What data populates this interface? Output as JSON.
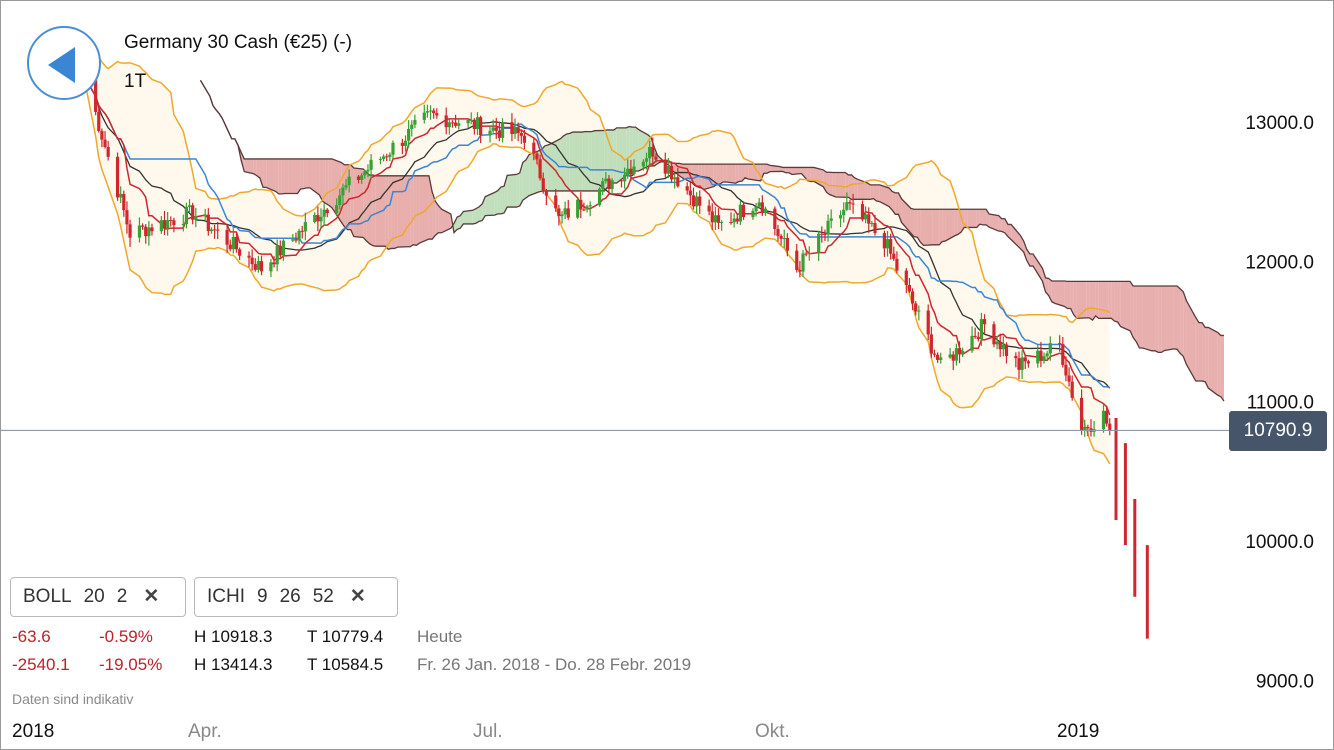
{
  "header": {
    "title": "Germany 30 Cash (€25) (-)",
    "period": "1T"
  },
  "price_tag": "10790.9",
  "indicators": [
    {
      "name": "BOLL",
      "p1": "20",
      "p2": "2",
      "p3": ""
    },
    {
      "name": "ICHI",
      "p1": "9",
      "p2": "26",
      "p3": "52"
    }
  ],
  "stats": {
    "today": {
      "change": "-63.6",
      "pct": "-0.59%",
      "high": "H 10918.3",
      "low": "T 10779.4",
      "label": "Heute"
    },
    "range": {
      "change": "-2540.1",
      "pct": "-19.05%",
      "high": "H 13414.3",
      "low": "T 10584.5",
      "label": "Fr. 26 Jan. 2018 - Do. 28 Febr. 2019"
    }
  },
  "disclaimer": "Daten sind indikativ",
  "colors": {
    "up": "#3aa035",
    "down": "#d0262f",
    "tenkan": "#d0262f",
    "kijun": "#3b86d4",
    "chikou": "#333333",
    "bollinger": "#f0a82a",
    "cloud_bull": "#b6d9b0",
    "cloud_bear": "#e3a1a0",
    "current_line": "#8e9aa6"
  },
  "chart_data": {
    "type": "candlestick",
    "title": "Germany 30 Cash (€25) (-)",
    "interval": "1T",
    "y_ticks": [
      "13000.0",
      "12000.0",
      "11000.0",
      "10000.0",
      "9000.0"
    ],
    "x_labels": [
      {
        "text": "2018",
        "date": "2018-01-01"
      },
      {
        "text": "Apr.",
        "date": "2018-04-01"
      },
      {
        "text": "Jul.",
        "date": "2018-07-01"
      },
      {
        "text": "Okt.",
        "date": "2018-10-01"
      },
      {
        "text": "2019",
        "date": "2019-01-01"
      }
    ],
    "last_price": 10790.9,
    "range_high": 13414.3,
    "range_low": 10584.5,
    "ohlc_anchors": [
      {
        "date": "2018-01-26",
        "close": 13300
      },
      {
        "date": "2018-02-09",
        "close": 12200
      },
      {
        "date": "2018-03-01",
        "close": 12350
      },
      {
        "date": "2018-03-23",
        "close": 11950
      },
      {
        "date": "2018-04-20",
        "close": 12550
      },
      {
        "date": "2018-05-16",
        "close": 13050
      },
      {
        "date": "2018-06-15",
        "close": 12900
      },
      {
        "date": "2018-06-26",
        "close": 12300
      },
      {
        "date": "2018-07-05",
        "close": 12450
      },
      {
        "date": "2018-07-26",
        "close": 12800
      },
      {
        "date": "2018-08-16",
        "close": 12250
      },
      {
        "date": "2018-08-29",
        "close": 12450
      },
      {
        "date": "2018-09-10",
        "close": 11950
      },
      {
        "date": "2018-09-26",
        "close": 12400
      },
      {
        "date": "2018-10-08",
        "close": 12150
      },
      {
        "date": "2018-10-26",
        "close": 11250
      },
      {
        "date": "2018-11-09",
        "close": 11550
      },
      {
        "date": "2018-11-20",
        "close": 11250
      },
      {
        "date": "2018-12-03",
        "close": 11400
      },
      {
        "date": "2018-12-10",
        "close": 10800
      },
      {
        "date": "2018-12-17",
        "close": 10900
      },
      {
        "date": "2018-12-19",
        "close": 10790.9
      }
    ],
    "projected_drop": [
      {
        "date": "2018-12-21",
        "high": 10880,
        "low": 10150
      },
      {
        "date": "2018-12-24",
        "high": 10700,
        "low": 9970
      },
      {
        "date": "2018-12-27",
        "high": 10300,
        "low": 9600
      },
      {
        "date": "2018-12-31",
        "high": 9970,
        "low": 9300
      }
    ]
  }
}
